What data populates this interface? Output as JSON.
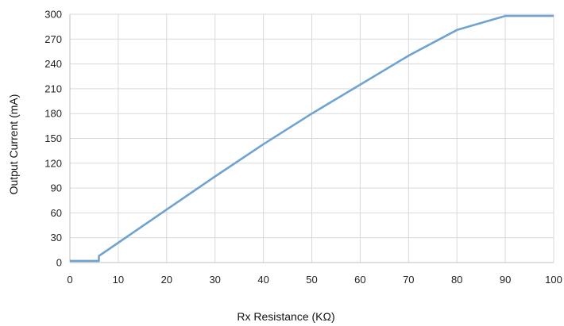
{
  "chart_data": {
    "type": "line",
    "title": "",
    "xlabel": "Rx Resistance (KΩ)",
    "ylabel": "Output Current (mA)",
    "xlim": [
      0,
      100
    ],
    "ylim": [
      0,
      300
    ],
    "xticks": [
      0,
      10,
      20,
      30,
      40,
      50,
      60,
      70,
      80,
      90,
      100
    ],
    "yticks": [
      0,
      30,
      60,
      90,
      120,
      150,
      180,
      210,
      240,
      270,
      300
    ],
    "grid": true,
    "legend": "none",
    "colors": {
      "line": "#6fa3d0",
      "grid": "#d9d9d9",
      "axis": "#bfbfbf"
    },
    "series": [
      {
        "values": [
          [
            0,
            2
          ],
          [
            6,
            2
          ],
          [
            6,
            8
          ],
          [
            10,
            24
          ],
          [
            20,
            64
          ],
          [
            30,
            104
          ],
          [
            40,
            143
          ],
          [
            50,
            180
          ],
          [
            60,
            215
          ],
          [
            70,
            250
          ],
          [
            80,
            281
          ],
          [
            90,
            298
          ],
          [
            100,
            298
          ]
        ]
      }
    ]
  }
}
